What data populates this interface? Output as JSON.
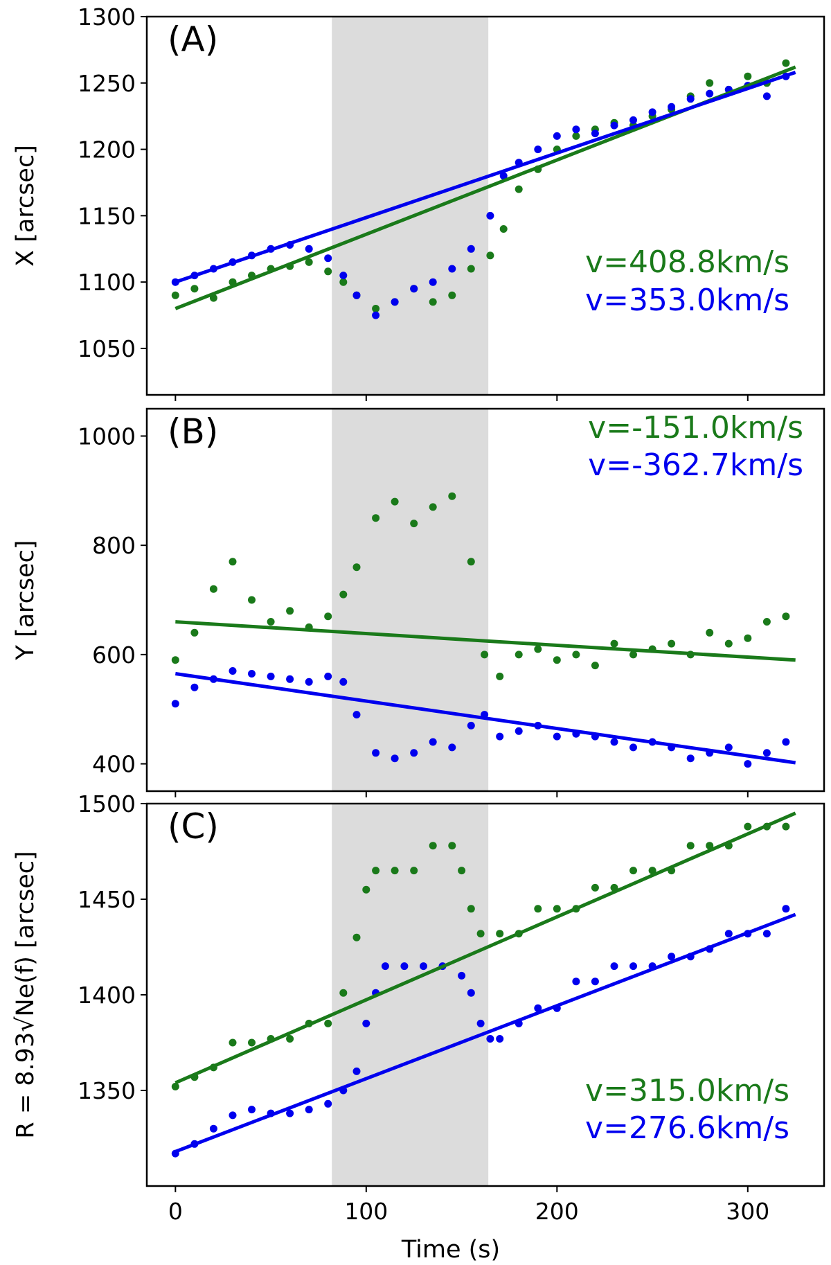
{
  "figure": {
    "xlabel": "Time (s)"
  },
  "colors": {
    "green": "#1a7a1a",
    "blue": "#0000ee",
    "shade": "#dcdcdc"
  },
  "chart_data": [
    {
      "type": "scatter",
      "panel_label": "(A)",
      "ylabel": "X [arcsec]",
      "xlim": [
        -15,
        340
      ],
      "ylim": [
        1015,
        1300
      ],
      "xticks": [
        0,
        100,
        200,
        300
      ],
      "yticks": [
        1050,
        1100,
        1150,
        1200,
        1250,
        1300
      ],
      "shade": [
        82,
        164
      ],
      "series": [
        {
          "name": "green",
          "color": "#1a7a1a",
          "annotation": "v=408.8km/s",
          "fit": {
            "x": [
              0,
              325
            ],
            "y": [
              1080,
              1262
            ]
          },
          "points": [
            [
              0,
              1090
            ],
            [
              10,
              1095
            ],
            [
              20,
              1088
            ],
            [
              30,
              1100
            ],
            [
              40,
              1105
            ],
            [
              50,
              1110
            ],
            [
              60,
              1112
            ],
            [
              70,
              1115
            ],
            [
              80,
              1108
            ],
            [
              88,
              1100
            ],
            [
              95,
              1090
            ],
            [
              105,
              1080
            ],
            [
              115,
              1085
            ],
            [
              125,
              1095
            ],
            [
              135,
              1085
            ],
            [
              145,
              1090
            ],
            [
              155,
              1110
            ],
            [
              165,
              1120
            ],
            [
              172,
              1140
            ],
            [
              180,
              1170
            ],
            [
              190,
              1185
            ],
            [
              200,
              1200
            ],
            [
              210,
              1210
            ],
            [
              220,
              1215
            ],
            [
              230,
              1220
            ],
            [
              240,
              1218
            ],
            [
              250,
              1225
            ],
            [
              260,
              1230
            ],
            [
              270,
              1240
            ],
            [
              280,
              1250
            ],
            [
              290,
              1245
            ],
            [
              300,
              1255
            ],
            [
              310,
              1250
            ],
            [
              320,
              1265
            ]
          ]
        },
        {
          "name": "blue",
          "color": "#0000ee",
          "annotation": "v=353.0km/s",
          "fit": {
            "x": [
              0,
              325
            ],
            "y": [
              1100,
              1258
            ]
          },
          "points": [
            [
              0,
              1100
            ],
            [
              10,
              1105
            ],
            [
              20,
              1110
            ],
            [
              30,
              1115
            ],
            [
              40,
              1120
            ],
            [
              50,
              1125
            ],
            [
              60,
              1128
            ],
            [
              70,
              1125
            ],
            [
              80,
              1118
            ],
            [
              88,
              1105
            ],
            [
              95,
              1090
            ],
            [
              105,
              1075
            ],
            [
              115,
              1085
            ],
            [
              125,
              1095
            ],
            [
              135,
              1100
            ],
            [
              145,
              1110
            ],
            [
              155,
              1125
            ],
            [
              165,
              1150
            ],
            [
              172,
              1180
            ],
            [
              180,
              1190
            ],
            [
              190,
              1200
            ],
            [
              200,
              1210
            ],
            [
              210,
              1215
            ],
            [
              220,
              1212
            ],
            [
              230,
              1218
            ],
            [
              240,
              1222
            ],
            [
              250,
              1228
            ],
            [
              260,
              1232
            ],
            [
              270,
              1238
            ],
            [
              280,
              1242
            ],
            [
              290,
              1245
            ],
            [
              300,
              1248
            ],
            [
              310,
              1240
            ],
            [
              320,
              1255
            ]
          ]
        }
      ]
    },
    {
      "type": "scatter",
      "panel_label": "(B)",
      "ylabel": "Y [arcsec]",
      "xlim": [
        -15,
        340
      ],
      "ylim": [
        350,
        1050
      ],
      "xticks": [
        0,
        100,
        200,
        300
      ],
      "yticks": [
        400,
        600,
        800,
        1000
      ],
      "shade": [
        82,
        164
      ],
      "series": [
        {
          "name": "green",
          "color": "#1a7a1a",
          "annotation": "v=-151.0km/s",
          "fit": {
            "x": [
              0,
              325
            ],
            "y": [
              660,
              590
            ]
          },
          "points": [
            [
              0,
              590
            ],
            [
              10,
              640
            ],
            [
              20,
              720
            ],
            [
              30,
              770
            ],
            [
              40,
              700
            ],
            [
              50,
              660
            ],
            [
              60,
              680
            ],
            [
              70,
              650
            ],
            [
              80,
              670
            ],
            [
              88,
              710
            ],
            [
              95,
              760
            ],
            [
              105,
              850
            ],
            [
              115,
              880
            ],
            [
              125,
              840
            ],
            [
              135,
              870
            ],
            [
              145,
              890
            ],
            [
              155,
              770
            ],
            [
              162,
              600
            ],
            [
              170,
              560
            ],
            [
              180,
              600
            ],
            [
              190,
              610
            ],
            [
              200,
              590
            ],
            [
              210,
              600
            ],
            [
              220,
              580
            ],
            [
              230,
              620
            ],
            [
              240,
              600
            ],
            [
              250,
              610
            ],
            [
              260,
              620
            ],
            [
              270,
              600
            ],
            [
              280,
              640
            ],
            [
              290,
              620
            ],
            [
              300,
              630
            ],
            [
              310,
              660
            ],
            [
              320,
              670
            ]
          ]
        },
        {
          "name": "blue",
          "color": "#0000ee",
          "annotation": "v=-362.7km/s",
          "fit": {
            "x": [
              0,
              325
            ],
            "y": [
              565,
              402
            ]
          },
          "points": [
            [
              0,
              510
            ],
            [
              10,
              540
            ],
            [
              20,
              555
            ],
            [
              30,
              570
            ],
            [
              40,
              565
            ],
            [
              50,
              560
            ],
            [
              60,
              555
            ],
            [
              70,
              550
            ],
            [
              80,
              560
            ],
            [
              88,
              550
            ],
            [
              95,
              490
            ],
            [
              105,
              420
            ],
            [
              115,
              410
            ],
            [
              125,
              420
            ],
            [
              135,
              440
            ],
            [
              145,
              430
            ],
            [
              155,
              470
            ],
            [
              162,
              490
            ],
            [
              170,
              450
            ],
            [
              180,
              460
            ],
            [
              190,
              470
            ],
            [
              200,
              450
            ],
            [
              210,
              455
            ],
            [
              220,
              450
            ],
            [
              230,
              440
            ],
            [
              240,
              430
            ],
            [
              250,
              440
            ],
            [
              260,
              430
            ],
            [
              270,
              410
            ],
            [
              280,
              420
            ],
            [
              290,
              430
            ],
            [
              300,
              400
            ],
            [
              310,
              420
            ],
            [
              320,
              440
            ]
          ]
        }
      ]
    },
    {
      "type": "scatter",
      "panel_label": "(C)",
      "ylabel": "R = 8.93√Ne(f) [arcsec]",
      "xlim": [
        -15,
        340
      ],
      "ylim": [
        1300,
        1500
      ],
      "xticks": [
        0,
        100,
        200,
        300
      ],
      "yticks": [
        1350,
        1400,
        1450,
        1500
      ],
      "shade": [
        82,
        164
      ],
      "series": [
        {
          "name": "green",
          "color": "#1a7a1a",
          "annotation": "v=315.0km/s",
          "fit": {
            "x": [
              0,
              325
            ],
            "y": [
              1354,
              1495
            ]
          },
          "points": [
            [
              0,
              1352
            ],
            [
              10,
              1357
            ],
            [
              20,
              1362
            ],
            [
              30,
              1375
            ],
            [
              40,
              1375
            ],
            [
              50,
              1377
            ],
            [
              60,
              1377
            ],
            [
              70,
              1385
            ],
            [
              80,
              1385
            ],
            [
              88,
              1401
            ],
            [
              95,
              1430
            ],
            [
              100,
              1455
            ],
            [
              105,
              1465
            ],
            [
              115,
              1465
            ],
            [
              125,
              1465
            ],
            [
              135,
              1478
            ],
            [
              145,
              1478
            ],
            [
              150,
              1465
            ],
            [
              155,
              1445
            ],
            [
              160,
              1432
            ],
            [
              170,
              1432
            ],
            [
              180,
              1432
            ],
            [
              190,
              1445
            ],
            [
              200,
              1445
            ],
            [
              210,
              1445
            ],
            [
              220,
              1456
            ],
            [
              230,
              1456
            ],
            [
              240,
              1465
            ],
            [
              250,
              1465
            ],
            [
              260,
              1465
            ],
            [
              270,
              1478
            ],
            [
              280,
              1478
            ],
            [
              290,
              1478
            ],
            [
              300,
              1488
            ],
            [
              310,
              1488
            ],
            [
              320,
              1488
            ]
          ]
        },
        {
          "name": "blue",
          "color": "#0000ee",
          "annotation": "v=276.6km/s",
          "fit": {
            "x": [
              0,
              325
            ],
            "y": [
              1318,
              1442
            ]
          },
          "points": [
            [
              0,
              1317
            ],
            [
              10,
              1322
            ],
            [
              20,
              1330
            ],
            [
              30,
              1337
            ],
            [
              40,
              1340
            ],
            [
              50,
              1338
            ],
            [
              60,
              1338
            ],
            [
              70,
              1340
            ],
            [
              80,
              1343
            ],
            [
              88,
              1350
            ],
            [
              95,
              1360
            ],
            [
              100,
              1385
            ],
            [
              105,
              1401
            ],
            [
              110,
              1415
            ],
            [
              120,
              1415
            ],
            [
              130,
              1415
            ],
            [
              140,
              1415
            ],
            [
              150,
              1410
            ],
            [
              155,
              1401
            ],
            [
              160,
              1385
            ],
            [
              165,
              1377
            ],
            [
              170,
              1377
            ],
            [
              180,
              1385
            ],
            [
              190,
              1393
            ],
            [
              200,
              1393
            ],
            [
              210,
              1407
            ],
            [
              220,
              1407
            ],
            [
              230,
              1415
            ],
            [
              240,
              1415
            ],
            [
              250,
              1415
            ],
            [
              260,
              1420
            ],
            [
              270,
              1420
            ],
            [
              280,
              1424
            ],
            [
              290,
              1432
            ],
            [
              300,
              1432
            ],
            [
              310,
              1432
            ],
            [
              320,
              1445
            ]
          ]
        }
      ]
    }
  ]
}
